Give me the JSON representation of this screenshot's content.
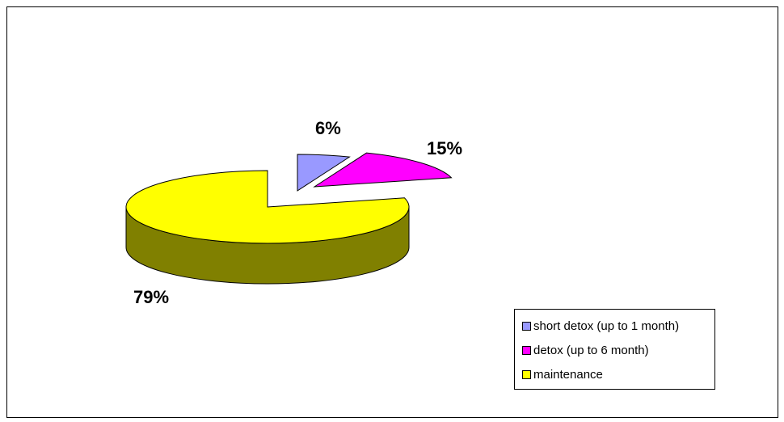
{
  "chart_data": {
    "type": "pie",
    "title": "",
    "slices": [
      {
        "name": "short detox (up to 1 month)",
        "value": 6,
        "label": "6%",
        "color": "#9999FF",
        "side_color": "#4D4D80"
      },
      {
        "name": "detox (up to 6 month)",
        "value": 15,
        "label": "15%",
        "color": "#FF00FF",
        "side_color": "#800080"
      },
      {
        "name": "maintenance",
        "value": 79,
        "label": "79%",
        "color": "#FFFF00",
        "side_color": "#808000"
      }
    ],
    "legend_position": "bottom-right",
    "exploded": true,
    "three_d": true
  }
}
